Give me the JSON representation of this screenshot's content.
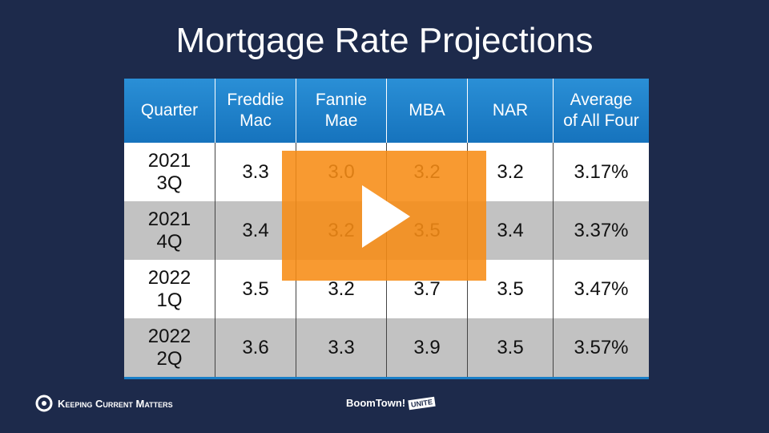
{
  "title": "Mortgage Rate Projections",
  "table": {
    "header": [
      "Quarter",
      "Freddie\nMac",
      "Fannie\nMae",
      "MBA",
      "NAR",
      "Average\nof All Four"
    ],
    "rows": [
      [
        "2021\n3Q",
        "3.3",
        "3.0",
        "3.2",
        "3.2",
        "3.17%"
      ],
      [
        "2021\n4Q",
        "3.4",
        "3.2",
        "3.5",
        "3.4",
        "3.37%"
      ],
      [
        "2022\n1Q",
        "3.5",
        "3.2",
        "3.7",
        "3.5",
        "3.47%"
      ],
      [
        "2022\n2Q",
        "3.6",
        "3.3",
        "3.9",
        "3.5",
        "3.57%"
      ]
    ]
  },
  "footer": {
    "left_logo": "Keeping Current Matters",
    "center_logo": "BoomTown!",
    "center_badge": "UNITE"
  }
}
